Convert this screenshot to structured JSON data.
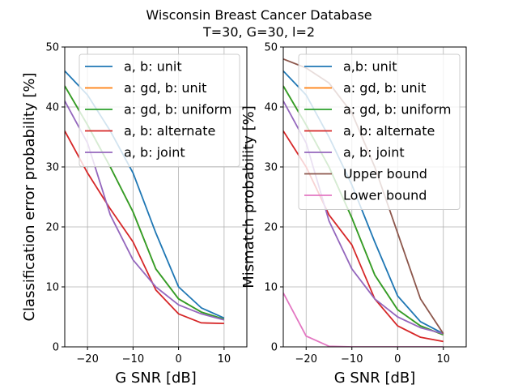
{
  "figure": {
    "title_line1": "Wisconsin Breast Cancer Database",
    "title_line2": "T=30, G=30, l=2"
  },
  "chart_data": [
    {
      "type": "line",
      "xlabel": "G SNR [dB]",
      "ylabel": "Classification error probability [%]",
      "xlim": [
        -25,
        15
      ],
      "ylim": [
        0,
        50
      ],
      "xticks": [
        -20,
        -10,
        0,
        10
      ],
      "yticks": [
        0,
        10,
        20,
        30,
        40,
        50
      ],
      "grid": true,
      "legend_position": "top-right",
      "x": [
        -25,
        -20,
        -15,
        -10,
        -5,
        0,
        5,
        10
      ],
      "series": [
        {
          "name": "a, b: unit",
          "color": "#1f77b4",
          "values": [
            46,
            42,
            36,
            29,
            19,
            10,
            6.5,
            4.8
          ]
        },
        {
          "name": "a: gd, b: unit",
          "color": "#ff7f0e",
          "values": [
            43.5,
            37,
            30,
            22.5,
            13,
            8,
            5.8,
            4.6
          ]
        },
        {
          "name": "a: gd, b: uniform",
          "color": "#2ca02c",
          "values": [
            43.5,
            37,
            30,
            22.5,
            13,
            8,
            5.8,
            4.6
          ]
        },
        {
          "name": "a, b: alternate",
          "color": "#d62728",
          "values": [
            36,
            29,
            23,
            17.5,
            9.5,
            5.5,
            4.0,
            3.9
          ]
        },
        {
          "name": "a, b: joint",
          "color": "#9467bd",
          "values": [
            41,
            34,
            22,
            14.5,
            10,
            7,
            5.5,
            4.5
          ]
        }
      ]
    },
    {
      "type": "line",
      "xlabel": "G SNR [dB]",
      "ylabel": "Mismatch probability [%]",
      "xlim": [
        -25,
        15
      ],
      "ylim": [
        0,
        50
      ],
      "xticks": [
        -20,
        -10,
        0,
        10
      ],
      "yticks": [
        0,
        10,
        20,
        30,
        40,
        50
      ],
      "grid": true,
      "legend_position": "top-right",
      "x": [
        -25,
        -20,
        -15,
        -10,
        -5,
        0,
        5,
        10
      ],
      "series": [
        {
          "name": "a,b: unit",
          "color": "#1f77b4",
          "values": [
            46,
            42,
            35,
            27,
            17.5,
            8.5,
            4.2,
            2.2
          ]
        },
        {
          "name": "a: gd, b: unit",
          "color": "#ff7f0e",
          "values": [
            43.5,
            37,
            30,
            21.5,
            12,
            6.2,
            3.5,
            2.0
          ]
        },
        {
          "name": "a: gd, b: uniform",
          "color": "#2ca02c",
          "values": [
            43.5,
            37,
            30,
            21.5,
            12,
            6.2,
            3.5,
            2.0
          ]
        },
        {
          "name": "a, b: alternate",
          "color": "#d62728",
          "values": [
            36,
            30,
            22,
            17,
            8,
            3.5,
            1.6,
            0.9
          ]
        },
        {
          "name": "a, b: joint",
          "color": "#9467bd",
          "values": [
            41,
            34,
            21,
            13,
            8,
            5,
            3.2,
            2.2
          ]
        },
        {
          "name": "Upper bound",
          "color": "#8c564b",
          "values": [
            48,
            46.5,
            44,
            39,
            30,
            19,
            8,
            2.2
          ]
        },
        {
          "name": "Lower bound",
          "color": "#e377c2",
          "values": [
            9,
            1.8,
            0.1,
            0,
            0,
            0,
            0,
            0
          ]
        }
      ]
    }
  ]
}
